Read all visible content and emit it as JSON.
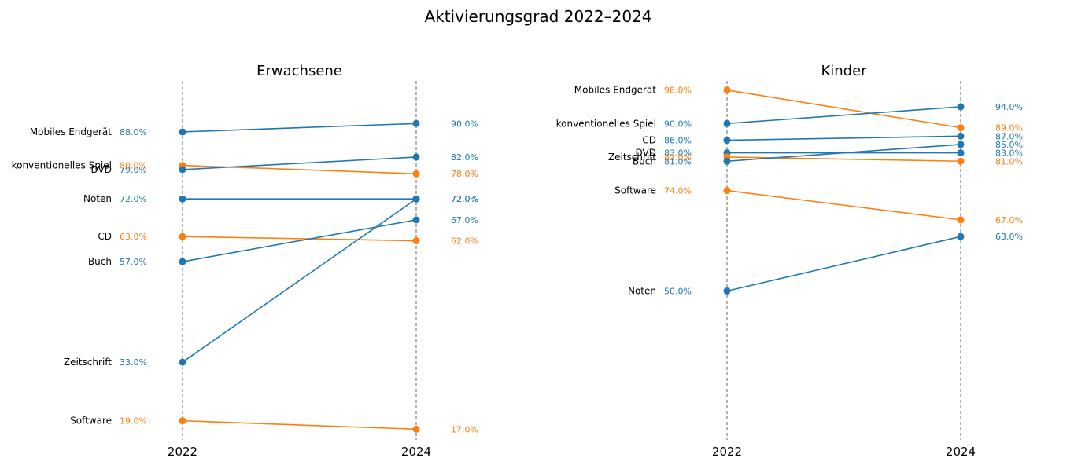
{
  "title": "Aktivierungsgrad 2022–2024",
  "colors": {
    "increase": "#1f77b4",
    "decrease": "#ff7f0e",
    "guide": "#808080"
  },
  "chart_data": [
    {
      "type": "slope",
      "title": "Erwachsene",
      "x": [
        "2022",
        "2024"
      ],
      "ylim": [
        15,
        100
      ],
      "series": [
        {
          "name": "Mobiles Endgerät",
          "values": [
            88.0,
            90.0
          ],
          "labels": [
            "88.0%",
            "90.0%"
          ]
        },
        {
          "name": "konventionelles Spiel",
          "values": [
            80.0,
            78.0
          ],
          "labels": [
            "80.0%",
            "78.0%"
          ]
        },
        {
          "name": "DVD",
          "values": [
            79.0,
            82.0
          ],
          "labels": [
            "79.0%",
            "82.0%"
          ]
        },
        {
          "name": "Noten",
          "values": [
            72.0,
            72.0
          ],
          "labels": [
            "72.0%",
            "72.0%"
          ]
        },
        {
          "name": "CD",
          "values": [
            63.0,
            62.0
          ],
          "labels": [
            "63.0%",
            "62.0%"
          ]
        },
        {
          "name": "Buch",
          "values": [
            57.0,
            67.0
          ],
          "labels": [
            "57.0%",
            "67.0%"
          ]
        },
        {
          "name": "Zeitschrift",
          "values": [
            33.0,
            72.0
          ],
          "labels": [
            "33.0%",
            "72.0%"
          ]
        },
        {
          "name": "Software",
          "values": [
            19.0,
            17.0
          ],
          "labels": [
            "19.0%",
            "17.0%"
          ]
        }
      ]
    },
    {
      "type": "slope",
      "title": "Kinder",
      "x": [
        "2022",
        "2024"
      ],
      "ylim": [
        15,
        100
      ],
      "series": [
        {
          "name": "Mobiles Endgerät",
          "values": [
            98.0,
            89.0
          ],
          "labels": [
            "98.0%",
            "89.0%"
          ]
        },
        {
          "name": "konventionelles Spiel",
          "values": [
            90.0,
            94.0
          ],
          "labels": [
            "90.0%",
            "94.0%"
          ]
        },
        {
          "name": "CD",
          "values": [
            86.0,
            87.0
          ],
          "labels": [
            "86.0%",
            "87.0%"
          ]
        },
        {
          "name": "DVD",
          "values": [
            83.0,
            83.0
          ],
          "labels": [
            "83.0%",
            "83.0%"
          ]
        },
        {
          "name": "Zeitschrift",
          "values": [
            82.0,
            81.0
          ],
          "labels": [
            "82.0%",
            "81.0%"
          ]
        },
        {
          "name": "Buch",
          "values": [
            81.0,
            85.0
          ],
          "labels": [
            "81.0%",
            "85.0%"
          ]
        },
        {
          "name": "Software",
          "values": [
            74.0,
            67.0
          ],
          "labels": [
            "74.0%",
            "67.0%"
          ]
        },
        {
          "name": "Noten",
          "values": [
            50.0,
            63.0
          ],
          "labels": [
            "50.0%",
            "63.0%"
          ]
        }
      ]
    }
  ]
}
